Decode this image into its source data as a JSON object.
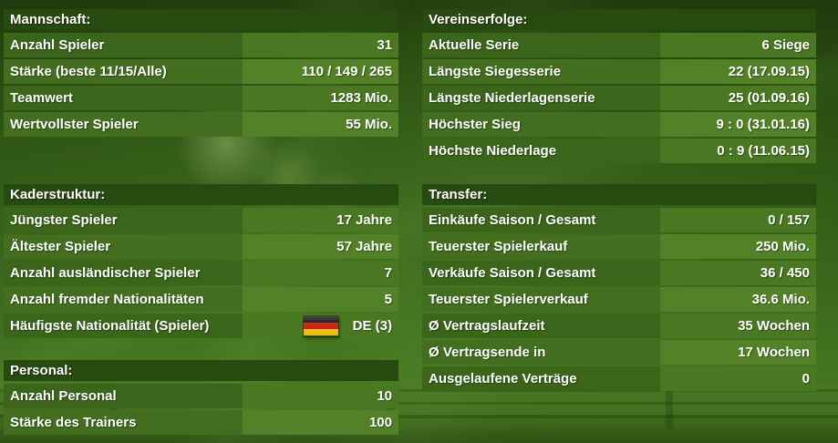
{
  "theme": {
    "section_header_bg": "#274a10",
    "row_label_bg": "#3b651b",
    "row_label_bg_alt": "#436e1f",
    "row_value_bg": "#4a7822",
    "row_value_bg_alt": "#538128",
    "flag_black": "#151515",
    "flag_red": "#d12419",
    "flag_gold": "#ffcd17",
    "text_color": "#ffffff"
  },
  "sections": {
    "mannschaft": {
      "title": "Mannschaft:",
      "rows": [
        {
          "label": "Anzahl Spieler",
          "value": "31"
        },
        {
          "label": "Stärke (beste 11/15/Alle)",
          "value": "110 / 149 / 265"
        },
        {
          "label": "Teamwert",
          "value": "1283 Mio."
        },
        {
          "label": "Wertvollster Spieler",
          "value": "55 Mio."
        }
      ]
    },
    "kaderstruktur": {
      "title": "Kaderstruktur:",
      "rows": [
        {
          "label": "Jüngster Spieler",
          "value": "17 Jahre"
        },
        {
          "label": "Ältester Spieler",
          "value": "57 Jahre"
        },
        {
          "label": "Anzahl ausländischer Spieler",
          "value": "7"
        },
        {
          "label": "Anzahl fremder Nationalitäten",
          "value": "5"
        },
        {
          "label": "Häufigste Nationalität (Spieler)",
          "value": "DE (3)",
          "flag_icon": "germany-flag"
        }
      ]
    },
    "personal": {
      "title": "Personal:",
      "rows": [
        {
          "label": "Anzahl Personal",
          "value": "10"
        },
        {
          "label": "Stärke des Trainers",
          "value": "100"
        }
      ]
    },
    "vereinserfolge": {
      "title": "Vereinserfolge:",
      "rows": [
        {
          "label": "Aktuelle Serie",
          "value": "6 Siege"
        },
        {
          "label": "Längste Siegesserie",
          "value": "22 (17.09.15)"
        },
        {
          "label": "Längste Niederlagenserie",
          "value": "25 (01.09.16)"
        },
        {
          "label": "Höchster Sieg",
          "value": "9 : 0 (31.01.16)"
        },
        {
          "label": "Höchste Niederlage",
          "value": "0 : 9 (11.06.15)"
        }
      ]
    },
    "transfer": {
      "title": "Transfer:",
      "rows": [
        {
          "label": "Einkäufe Saison / Gesamt",
          "value": "0 / 157"
        },
        {
          "label": "Teuerster Spielerkauf",
          "value": "250 Mio."
        },
        {
          "label": "Verkäufe Saison / Gesamt",
          "value": "36 / 450"
        },
        {
          "label": "Teuerster Spielerverkauf",
          "value": "36.6 Mio."
        },
        {
          "label": "Ø Vertragslaufzeit",
          "value": "35 Wochen"
        },
        {
          "label": "Ø Vertragsende in",
          "value": "17 Wochen"
        },
        {
          "label": "Ausgelaufene Verträge",
          "value": "0"
        }
      ]
    }
  }
}
